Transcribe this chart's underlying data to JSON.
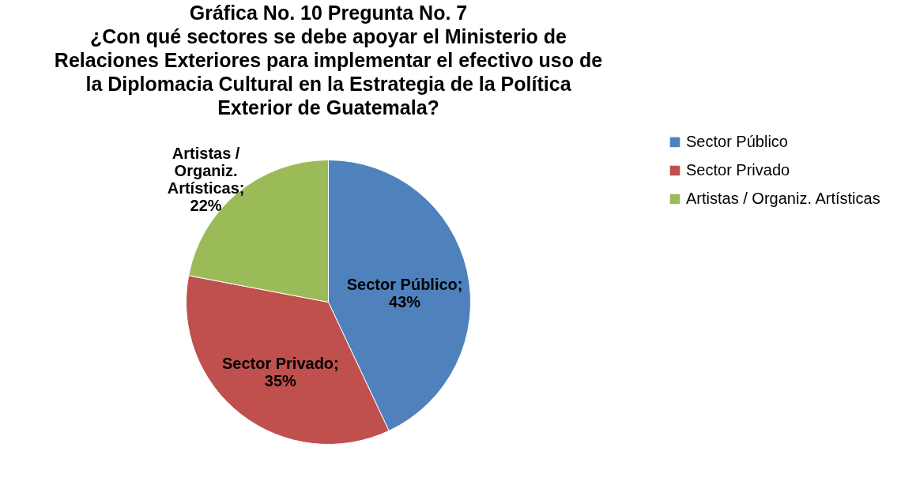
{
  "chart_data": {
    "type": "pie",
    "title": "Gráfica  No. 10 Pregunta No. 7\n¿Con qué sectores se debe apoyar el Ministerio de\nRelaciones Exteriores para implementar el efectivo uso de\nla Diplomacia Cultural en la Estrategia de la Política\nExterior de Guatemala?",
    "categories": [
      "Sector Público",
      "Sector Privado",
      "Artistas / Organiz. Artísticas"
    ],
    "values": [
      43,
      35,
      22
    ],
    "colors": [
      "#4f81bd",
      "#c0504d",
      "#9bbb59"
    ],
    "value_labels": [
      "Sector Público;\n43%",
      "Sector Privado;\n35%",
      "Artistas /\nOrganiz.\nArtísticas;\n22%"
    ],
    "legend": "right"
  }
}
